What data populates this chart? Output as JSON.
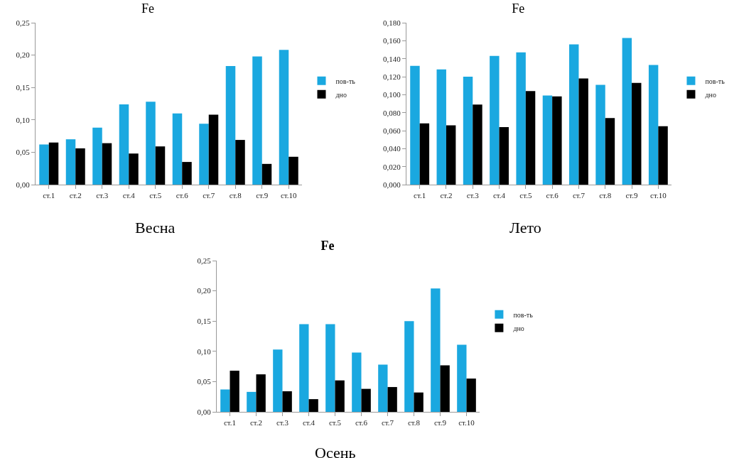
{
  "chart_data": [
    {
      "type": "bar",
      "title": "Fe",
      "categories": [
        "ст.1",
        "ст.2",
        "ст.3",
        "ст.4",
        "ст.5",
        "ст.6",
        "ст.7",
        "ст.8",
        "ст.9",
        "ст.10"
      ],
      "series": [
        {
          "name": "пов-ть",
          "color": "#1aa8e0",
          "values": [
            0.062,
            0.07,
            0.088,
            0.124,
            0.128,
            0.11,
            0.094,
            0.183,
            0.198,
            0.208
          ]
        },
        {
          "name": "дно",
          "color": "#000000",
          "values": [
            0.065,
            0.056,
            0.064,
            0.048,
            0.059,
            0.035,
            0.108,
            0.069,
            0.032,
            0.043
          ]
        }
      ],
      "ylim": [
        0,
        0.25
      ],
      "yticks": [
        {
          "value": 0,
          "label": "0,00"
        },
        {
          "value": 0.05,
          "label": "0,05"
        },
        {
          "value": 0.1,
          "label": "0,10"
        },
        {
          "value": 0.15,
          "label": "0,15"
        },
        {
          "value": 0.2,
          "label": "0,20"
        },
        {
          "value": 0.25,
          "label": "0,25"
        }
      ],
      "grid": false,
      "legend": "right",
      "annotations": [
        "Весна"
      ]
    },
    {
      "type": "bar",
      "title": "Fe",
      "categories": [
        "ст.1",
        "ст.2",
        "ст.3",
        "ст.4",
        "ст.5",
        "ст.6",
        "ст.7",
        "ст.8",
        "ст.9",
        "ст.10"
      ],
      "series": [
        {
          "name": "пов-ть",
          "color": "#1aa8e0",
          "values": [
            0.132,
            0.128,
            0.12,
            0.143,
            0.147,
            0.099,
            0.156,
            0.111,
            0.163,
            0.133
          ]
        },
        {
          "name": "дно",
          "color": "#000000",
          "values": [
            0.068,
            0.066,
            0.089,
            0.064,
            0.104,
            0.098,
            0.118,
            0.074,
            0.113,
            0.065
          ]
        }
      ],
      "ylim": [
        0,
        0.18
      ],
      "yticks": [
        {
          "value": 0,
          "label": "0,000"
        },
        {
          "value": 0.02,
          "label": "0,020"
        },
        {
          "value": 0.04,
          "label": "0,040"
        },
        {
          "value": 0.06,
          "label": "0,060"
        },
        {
          "value": 0.08,
          "label": "0,080"
        },
        {
          "value": 0.1,
          "label": "0,100"
        },
        {
          "value": 0.12,
          "label": "0,120"
        },
        {
          "value": 0.14,
          "label": "0,140"
        },
        {
          "value": 0.16,
          "label": "0,160"
        },
        {
          "value": 0.18,
          "label": "0,180"
        }
      ],
      "grid": false,
      "legend": "right",
      "annotations": [
        "Лето"
      ]
    },
    {
      "type": "bar",
      "title": "Fe",
      "categories": [
        "ст.1",
        "ст.2",
        "ст.3",
        "ст.4",
        "ст.5",
        "ст.6",
        "ст.7",
        "ст.8",
        "ст.9",
        "ст.10"
      ],
      "series": [
        {
          "name": "пов-ть",
          "color": "#1aa8e0",
          "values": [
            0.037,
            0.033,
            0.103,
            0.145,
            0.145,
            0.098,
            0.078,
            0.15,
            0.204,
            0.111
          ]
        },
        {
          "name": "дно",
          "color": "#000000",
          "values": [
            0.068,
            0.062,
            0.034,
            0.021,
            0.052,
            0.038,
            0.041,
            0.032,
            0.077,
            0.055
          ]
        }
      ],
      "ylim": [
        0,
        0.25
      ],
      "yticks": [
        {
          "value": 0,
          "label": "0,00"
        },
        {
          "value": 0.05,
          "label": "0,05"
        },
        {
          "value": 0.1,
          "label": "0,10"
        },
        {
          "value": 0.15,
          "label": "0,15"
        },
        {
          "value": 0.2,
          "label": "0,20"
        },
        {
          "value": 0.25,
          "label": "0,25"
        }
      ],
      "grid": false,
      "legend": "right",
      "annotations": [
        "Осень"
      ]
    }
  ]
}
